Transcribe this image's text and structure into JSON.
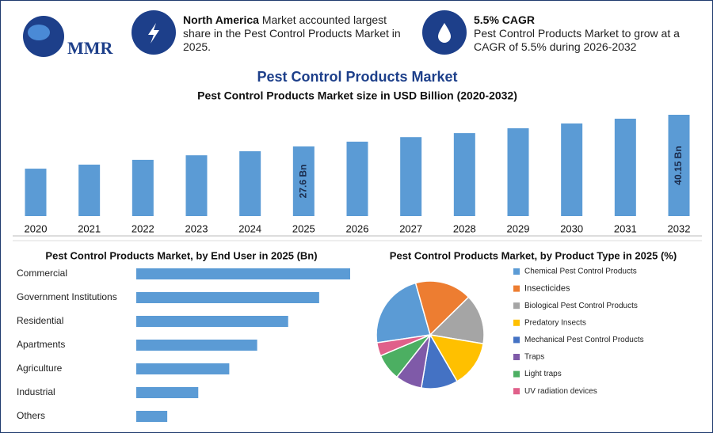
{
  "header": {
    "logo": "MMR",
    "left": {
      "highlight": "North America",
      "text": "Market accounted largest share in the Pest Control Products Market in 2025."
    },
    "right": {
      "highlight": "5.5% CAGR",
      "text": "Pest Control Products Market to grow at a CAGR of 5.5% during 2026-2032"
    }
  },
  "chart_data": [
    {
      "type": "bar",
      "title": "Pest Control Products Market",
      "subtitle": "Pest Control Products Market size in USD Billion (2020-2032)",
      "categories": [
        "2020",
        "2021",
        "2022",
        "2023",
        "2024",
        "2025",
        "2026",
        "2027",
        "2028",
        "2029",
        "2030",
        "2031",
        "2032"
      ],
      "values": [
        18.8,
        20.4,
        22.3,
        24.1,
        25.7,
        27.6,
        29.5,
        31.3,
        32.9,
        34.8,
        36.7,
        38.6,
        40.15
      ],
      "value_labels": [
        null,
        null,
        null,
        null,
        null,
        "27.6 Bn",
        null,
        null,
        null,
        null,
        null,
        null,
        "40.15 Bn"
      ],
      "color": "#5b9bd5"
    },
    {
      "type": "hbar",
      "title": "Pest Control Products Market, by End User in 2025 (Bn)",
      "categories": [
        "Commercial",
        "Government Institutions",
        "Residential",
        "Apartments",
        "Agriculture",
        "Industrial",
        "Others"
      ],
      "values": [
        6.9,
        5.9,
        4.9,
        3.9,
        3.0,
        2.0,
        1.0
      ],
      "color": "#5b9bd5"
    },
    {
      "type": "pie",
      "title": "Pest Control Products Market, by Product Type in 2025 (%)",
      "categories": [
        "Chemical Pest Control Products",
        "Insecticides",
        "Biological Pest Control Products",
        "Predatory Insects",
        "Mechanical Pest Control Products",
        "Traps",
        "Light traps",
        "UV radiation devices"
      ],
      "values": [
        23,
        17,
        15,
        14,
        11,
        8,
        8,
        4
      ],
      "colors": [
        "#5b9bd5",
        "#ed7d31",
        "#a5a5a5",
        "#ffc000",
        "#4472c4",
        "#7f5aa8",
        "#4caf62",
        "#e0608a"
      ]
    }
  ]
}
